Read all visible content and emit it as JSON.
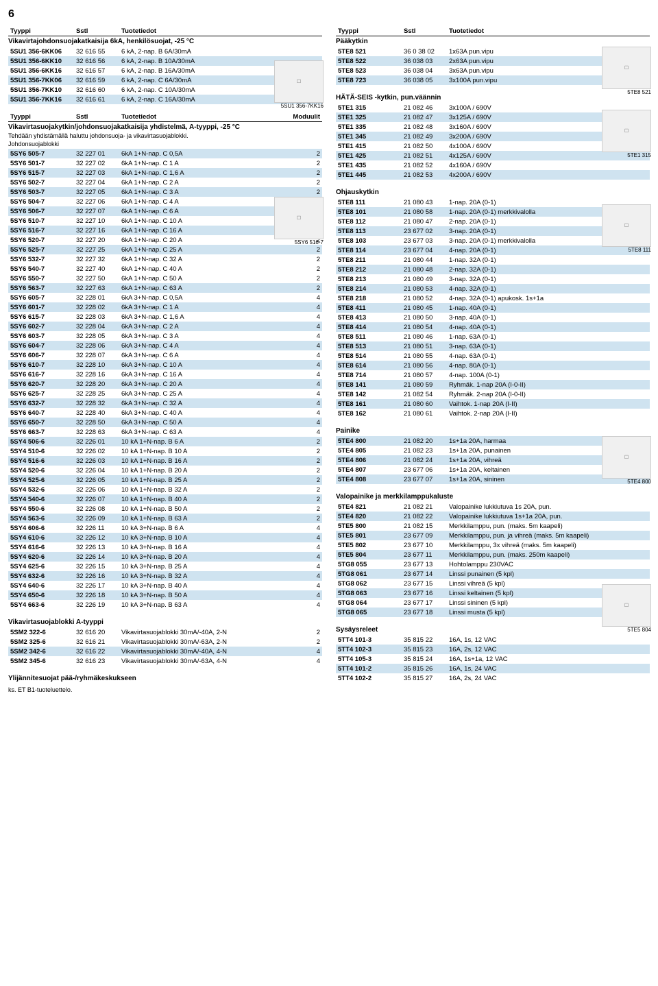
{
  "page_number": "6",
  "left": {
    "hdr": [
      "Tyyppi",
      "Sstl",
      "Tuotetiedot"
    ],
    "sec1": {
      "title": "Vikavirtajohdonsuojakatkaisija 6kA, henkilösuojat, -25 °C",
      "rows": [
        [
          "5SU1 356-6KK06",
          "32 616 55",
          "6 kA, 2-nap. B 6A/30mA",
          0
        ],
        [
          "5SU1 356-6KK10",
          "32 616 56",
          "6 kA, 2-nap. B 10A/30mA",
          1
        ],
        [
          "5SU1 356-6KK16",
          "32 616 57",
          "6 kA, 2-nap. B 16A/30mA",
          0
        ],
        [
          "5SU1 356-7KK06",
          "32 616 59",
          "6 kA, 2-nap. C 6A/30mA",
          1
        ],
        [
          "5SU1 356-7KK10",
          "32 616 60",
          "6 kA, 2-nap. C 10A/30mA",
          0
        ],
        [
          "5SU1 356-7KK16",
          "32 616 61",
          "6 kA, 2-nap. C 16A/30mA",
          1
        ]
      ],
      "img": "5SU1 356-7KK16"
    },
    "hdr2": [
      "Tyyppi",
      "Sstl",
      "Tuotetiedot",
      "Moduulit"
    ],
    "sec2": {
      "title": "Vikavirtasuojakytkin/johdonsuojakatkaisija yhdistelmä, A-tyyppi, -25 °C",
      "sub": "Tehdään yhdistämällä haluttu johdonsuoja- ja vikavirtasuojablokki.",
      "sub2": "Johdonsuojablokki",
      "rows": [
        [
          "5SY6 505-7",
          "32 227 01",
          "6kA 1+N-nap. C 0,5A",
          "2",
          1
        ],
        [
          "5SY6 501-7",
          "32 227 02",
          "6kA 1+N-nap. C 1 A",
          "2",
          0
        ],
        [
          "5SY6 515-7",
          "32 227 03",
          "6kA 1+N-nap. C 1,6 A",
          "2",
          1
        ],
        [
          "5SY6 502-7",
          "32 227 04",
          "6kA 1+N-nap. C 2 A",
          "2",
          0
        ],
        [
          "5SY6 503-7",
          "32 227 05",
          "6kA 1+N-nap. C 3 A",
          "2",
          1
        ],
        [
          "5SY6 504-7",
          "32 227 06",
          "6kA 1+N-nap. C 4 A",
          "2",
          0
        ],
        [
          "5SY6 506-7",
          "32 227 07",
          "6kA 1+N-nap. C 6 A",
          "2",
          1
        ],
        [
          "5SY6 510-7",
          "32 227 10",
          "6kA 1+N-nap. C 10 A",
          "2",
          0
        ],
        [
          "5SY6 516-7",
          "32 227 16",
          "6kA 1+N-nap. C 16 A",
          "2",
          1
        ],
        [
          "5SY6 520-7",
          "32 227 20",
          "6kA 1+N-nap. C 20 A",
          "2",
          0
        ],
        [
          "5SY6 525-7",
          "32 227 25",
          "6kA 1+N-nap. C 25 A",
          "2",
          1
        ],
        [
          "5SY6 532-7",
          "32 227 32",
          "6kA 1+N-nap. C 32 A",
          "2",
          0
        ],
        [
          "5SY6 540-7",
          "32 227 40",
          "6kA 1+N-nap. C 40 A",
          "2",
          0
        ],
        [
          "5SY6 550-7",
          "32 227 50",
          "6kA 1+N-nap. C 50 A",
          "2",
          0
        ],
        [
          "5SY6 563-7",
          "32 227 63",
          "6kA 1+N-nap. C 63 A",
          "2",
          1
        ],
        [
          "5SY6 605-7",
          "32 228 01",
          "6kA 3+N-nap. C 0,5A",
          "4",
          0
        ],
        [
          "5SY6 601-7",
          "32 228 02",
          "6kA 3+N-nap. C 1 A",
          "4",
          1
        ],
        [
          "5SY6 615-7",
          "32 228 03",
          "6kA 3+N-nap. C 1,6 A",
          "4",
          0
        ],
        [
          "5SY6 602-7",
          "32 228 04",
          "6kA 3+N-nap. C 2 A",
          "4",
          1
        ],
        [
          "5SY6 603-7",
          "32 228 05",
          "6kA 3+N-nap. C 3 A",
          "4",
          0
        ],
        [
          "5SY6 604-7",
          "32 228 06",
          "6kA 3+N-nap. C 4 A",
          "4",
          1
        ],
        [
          "5SY6 606-7",
          "32 228 07",
          "6kA 3+N-nap. C 6 A",
          "4",
          0
        ],
        [
          "5SY6 610-7",
          "32 228 10",
          "6kA 3+N-nap. C 10 A",
          "4",
          1
        ],
        [
          "5SY6 616-7",
          "32 228 16",
          "6kA 3+N-nap. C 16 A",
          "4",
          0
        ],
        [
          "5SY6 620-7",
          "32 228 20",
          "6kA 3+N-nap. C 20 A",
          "4",
          1
        ],
        [
          "5SY6 625-7",
          "32 228 25",
          "6kA 3+N-nap. C 25 A",
          "4",
          0
        ],
        [
          "5SY6 632-7",
          "32 228 32",
          "6kA 3+N-nap. C 32 A",
          "4",
          1
        ],
        [
          "5SY6 640-7",
          "32 228 40",
          "6kA 3+N-nap. C 40 A",
          "4",
          0
        ],
        [
          "5SY6 650-7",
          "32 228 50",
          "6kA 3+N-nap. C 50 A",
          "4",
          1
        ],
        [
          "5SY6 663-7",
          "32 228 63",
          "6kA 3+N-nap. C 63 A",
          "4",
          0
        ],
        [
          "5SY4 506-6",
          "32 226 01",
          "10 kA 1+N-nap. B 6 A",
          "2",
          1
        ],
        [
          "5SY4 510-6",
          "32 226 02",
          "10 kA 1+N-nap. B 10 A",
          "2",
          0
        ],
        [
          "5SY4 516-6",
          "32 226 03",
          "10 kA 1+N-nap. B 16 A",
          "2",
          1
        ],
        [
          "5SY4 520-6",
          "32 226 04",
          "10 kA 1+N-nap. B 20 A",
          "2",
          0
        ],
        [
          "5SY4 525-6",
          "32 226 05",
          "10 kA 1+N-nap. B 25 A",
          "2",
          1
        ],
        [
          "5SY4 532-6",
          "32 226 06",
          "10 kA 1+N-nap. B 32 A",
          "2",
          0
        ],
        [
          "5SY4 540-6",
          "32 226 07",
          "10 kA 1+N-nap. B 40 A",
          "2",
          1
        ],
        [
          "5SY4 550-6",
          "32 226 08",
          "10 kA 1+N-nap. B 50 A",
          "2",
          0
        ],
        [
          "5SY4 563-6",
          "32 226 09",
          "10 kA 1+N-nap. B 63 A",
          "2",
          1
        ],
        [
          "5SY4 606-6",
          "32 226 11",
          "10 kA 3+N-nap. B 6 A",
          "4",
          0
        ],
        [
          "5SY4 610-6",
          "32 226 12",
          "10 kA 3+N-nap. B 10 A",
          "4",
          1
        ],
        [
          "5SY4 616-6",
          "32 226 13",
          "10 kA 3+N-nap. B 16 A",
          "4",
          0
        ],
        [
          "5SY4 620-6",
          "32 226 14",
          "10 kA 3+N-nap. B 20 A",
          "4",
          1
        ],
        [
          "5SY4 625-6",
          "32 226 15",
          "10 kA 3+N-nap. B 25 A",
          "4",
          0
        ],
        [
          "5SY4 632-6",
          "32 226 16",
          "10 kA 3+N-nap. B 32 A",
          "4",
          1
        ],
        [
          "5SY4 640-6",
          "32 226 17",
          "10 kA 3+N-nap. B 40 A",
          "4",
          0
        ],
        [
          "5SY4 650-6",
          "32 226 18",
          "10 kA 3+N-nap. B 50 A",
          "4",
          1
        ],
        [
          "5SY4 663-6",
          "32 226 19",
          "10 kA 3+N-nap. B 63 A",
          "4",
          0
        ]
      ],
      "img1": "5SY6 516-7",
      "img2": "5SY4 516-6"
    },
    "sec3": {
      "title": "Vikavirtasuojablokki A-tyyppi",
      "rows": [
        [
          "5SM2 322-6",
          "32 616 20",
          "Vikavirtasuojablokki 30mA/-40A, 2-N",
          "2",
          0
        ],
        [
          "5SM2 325-6",
          "32 616 21",
          "Vikavirtasuojablokki 30mA/-63A, 2-N",
          "2",
          0
        ],
        [
          "5SM2 342-6",
          "32 616 22",
          "Vikavirtasuojablokki 30mA/-40A, 4-N",
          "4",
          1
        ],
        [
          "5SM2 345-6",
          "32 616 23",
          "Vikavirtasuojablokki 30mA/-63A, 4-N",
          "4",
          0
        ]
      ]
    },
    "footer": {
      "l1": "Ylijännitesuojat pää-/ryhmäkeskukseen",
      "l2": "ks. ET B1-tuoteluettelo."
    }
  },
  "right": {
    "hdr": [
      "Tyyppi",
      "Sstl",
      "Tuotetiedot"
    ],
    "sec1": {
      "title": "Pääkytkin",
      "rows": [
        [
          "5TE8 521",
          "36 0 38 02",
          "1x63A pun.vipu",
          0
        ],
        [
          "5TE8 522",
          "36 038 03",
          "2x63A pun.vipu",
          1
        ],
        [
          "5TE8 523",
          "36 038 04",
          "3x63A pun.vipu",
          0
        ],
        [
          "5TE8 723",
          "36 038 05",
          "3x100A pun.vipu",
          1
        ]
      ],
      "img": "5TE8 521"
    },
    "sec2": {
      "title": "HÄTÄ-SEIS -kytkin, pun.väännin",
      "rows": [
        [
          "5TE1 315",
          "21 082 46",
          "3x100A / 690V",
          0
        ],
        [
          "5TE1 325",
          "21 082 47",
          "3x125A / 690V",
          1
        ],
        [
          "5TE1 335",
          "21 082 48",
          "3x160A / 690V",
          0
        ],
        [
          "5TE1 345",
          "21 082 49",
          "3x200A / 690V",
          1
        ],
        [
          "5TE1 415",
          "21 082 50",
          "4x100A / 690V",
          0
        ],
        [
          "5TE1 425",
          "21 082 51",
          "4x125A / 690V",
          1
        ],
        [
          "5TE1 435",
          "21 082 52",
          "4x160A / 690V",
          0
        ],
        [
          "5TE1 445",
          "21 082 53",
          "4x200A / 690V",
          1
        ]
      ],
      "img": "5TE1 315"
    },
    "sec3": {
      "title": "Ohjauskytkin",
      "rows": [
        [
          "5TE8 111",
          "21 080 43",
          "1-nap. 20A (0-1)",
          0
        ],
        [
          "5TE8 101",
          "21 080 58",
          "1-nap. 20A (0-1) merkkivalolla",
          1
        ],
        [
          "5TE8 112",
          "21 080 47",
          "2-nap. 20A (0-1)",
          0
        ],
        [
          "5TE8 113",
          "23 677 02",
          "3-nap. 20A (0-1)",
          1
        ],
        [
          "5TE8 103",
          "23 677 03",
          "3-nap. 20A (0-1) merkkivalolla",
          0
        ],
        [
          "5TE8 114",
          "23 677 04",
          "4-nap. 20A (0-1)",
          1
        ],
        [
          "5TE8 211",
          "21 080 44",
          "1-nap. 32A (0-1)",
          0
        ],
        [
          "5TE8 212",
          "21 080 48",
          "2-nap. 32A (0-1)",
          1
        ],
        [
          "5TE8 213",
          "21 080 49",
          "3-nap. 32A (0-1)",
          0
        ],
        [
          "5TE8 214",
          "21 080 53",
          "4-nap. 32A (0-1)",
          1
        ],
        [
          "5TE8 218",
          "21 080 52",
          "4-nap. 32A (0-1) apukosk. 1s+1a",
          0
        ],
        [
          "5TE8 411",
          "21 080 45",
          "1-nap. 40A (0-1)",
          1
        ],
        [
          "5TE8 413",
          "21 080 50",
          "3-nap. 40A (0-1)",
          0
        ],
        [
          "5TE8 414",
          "21 080 54",
          "4-nap. 40A (0-1)",
          1
        ],
        [
          "5TE8 511",
          "21 080 46",
          "1-nap. 63A (0-1)",
          0
        ],
        [
          "5TE8 513",
          "21 080 51",
          "3-nap. 63A (0-1)",
          1
        ],
        [
          "5TE8 514",
          "21 080 55",
          "4-nap. 63A (0-1)",
          0
        ],
        [
          "5TE8 614",
          "21 080 56",
          "4-nap. 80A (0-1)",
          1
        ],
        [
          "5TE8 714",
          "21 080 57",
          "4-nap. 100A (0-1)",
          0
        ],
        [
          "5TE8 141",
          "21 080 59",
          "Ryhmäk. 1-nap 20A (I-0-II)",
          1
        ],
        [
          "5TE8 142",
          "21 082 54",
          "Ryhmäk. 2-nap 20A (I-0-II)",
          0
        ],
        [
          "5TE8 161",
          "21 080 60",
          "Vaihtok. 1-nap 20A (I-II)",
          1
        ],
        [
          "5TE8 162",
          "21 080 61",
          "Vaihtok. 2-nap 20A (I-II)",
          0
        ]
      ],
      "img": "5TE8 111"
    },
    "sec4": {
      "title": "Painike",
      "rows": [
        [
          "5TE4 800",
          "21 082 20",
          "1s+1a 20A, harmaa",
          1
        ],
        [
          "5TE4 805",
          "21 082 23",
          "1s+1a 20A, punainen",
          0
        ],
        [
          "5TE4 806",
          "21 082 24",
          "1s+1a 20A, vihreä",
          1
        ],
        [
          "5TE4 807",
          "23 677 06",
          "1s+1a 20A, keltainen",
          0
        ],
        [
          "5TE4 808",
          "23 677 07",
          "1s+1a 20A, sininen",
          1
        ]
      ],
      "img": "5TE4 800"
    },
    "sec5": {
      "title": "Valopainike ja merkkilamppukaluste",
      "rows": [
        [
          "5TE4 821",
          "21 082 21",
          "Valopainike lukkiutuva 1s 20A, pun.",
          0
        ],
        [
          "5TE4 820",
          "21 082 22",
          "Valopainike lukkiutuva 1s+1a 20A, pun.",
          1
        ],
        [
          "5TE5 800",
          "21 082 15",
          "Merkkilamppu, pun. (maks. 5m kaapeli)",
          0
        ],
        [
          "5TE5 801",
          "23 677 09",
          "Merkkilamppu, pun. ja vihreä (maks. 5m kaapeli)",
          1
        ],
        [
          "5TE5 802",
          "23 677 10",
          "Merkkilamppu, 3x vihreä (maks. 5m kaapeli)",
          0
        ],
        [
          "5TE5 804",
          "23 677 11",
          "Merkkilamppu, pun. (maks. 250m kaapeli)",
          1
        ],
        [
          "5TG8 055",
          "23 677 13",
          "Hohtolamppu 230VAC",
          0
        ],
        [
          "5TG8 061",
          "23 677 14",
          "Linssi punainen (5 kpl)",
          1
        ],
        [
          "5TG8 062",
          "23 677 15",
          "Linssi vihreä (5 kpl)",
          0
        ],
        [
          "5TG8 063",
          "23 677 16",
          "Linssi keltainen (5 kpl)",
          1
        ],
        [
          "5TG8 064",
          "23 677 17",
          "Linssi sininen (5 kpl)",
          0
        ],
        [
          "5TG8 065",
          "23 677 18",
          "Linssi musta (5 kpl)",
          1
        ]
      ],
      "img": "5TE5 804"
    },
    "sec6": {
      "title": "Sysäysreleet",
      "rows": [
        [
          "5TT4 101-3",
          "35 815 22",
          "16A, 1s, 12 VAC",
          0
        ],
        [
          "5TT4 102-3",
          "35 815 23",
          "16A, 2s, 12 VAC",
          1
        ],
        [
          "5TT4 105-3",
          "35 815 24",
          "16A, 1s+1a, 12 VAC",
          0
        ],
        [
          "5TT4 101-2",
          "35 815 26",
          "16A, 1s, 24 VAC",
          1
        ],
        [
          "5TT4 102-2",
          "35 815 27",
          "16A, 2s, 24 VAC",
          0
        ]
      ]
    }
  }
}
